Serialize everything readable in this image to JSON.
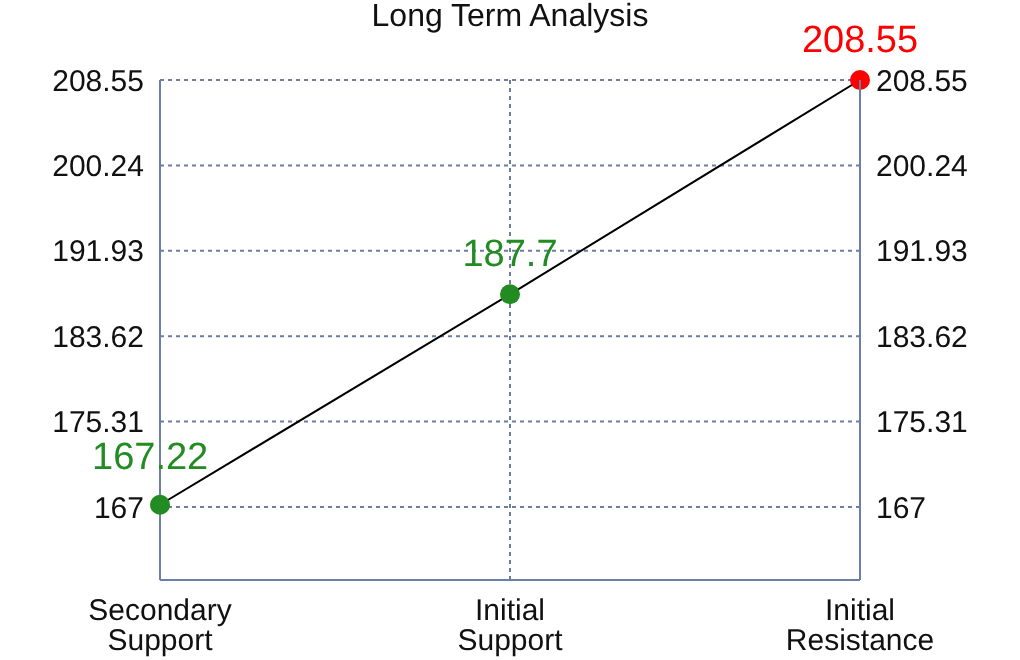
{
  "chart_data": {
    "type": "line",
    "title": "Long Term Analysis",
    "categories": [
      "Secondary Support",
      "Initial Support",
      "Initial Resistance"
    ],
    "series": [
      {
        "color": "#000000",
        "colors": [
          "#228b22",
          "#228b22",
          "#ff0000"
        ],
        "values": [
          167.22,
          187.7,
          208.55
        ]
      }
    ],
    "data_labels": true,
    "marker": "circle",
    "ylim": [
      159.9,
      208.55
    ],
    "yticks": [
      167,
      175.31,
      183.62,
      191.93,
      200.24,
      208.55
    ],
    "y2lim": [
      159.9,
      208.55
    ],
    "y2ticks": [
      167,
      175.31,
      183.62,
      191.93,
      200.24,
      208.55
    ],
    "grid": true
  }
}
